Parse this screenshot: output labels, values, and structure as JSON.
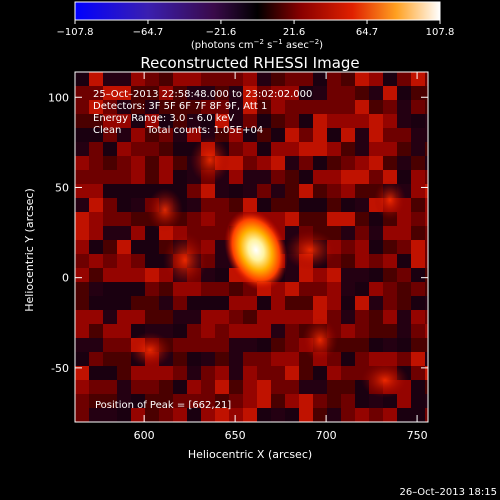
{
  "colorbar": {
    "tick_labels": [
      "−107.8",
      "−64.7",
      "−21.6",
      "21.6",
      "64.7",
      "107.8"
    ],
    "unit_main": "(photons cm",
    "unit_exp1": "−2",
    "unit_mid": " s",
    "unit_exp2": "−1",
    "unit_mid2": " asec",
    "unit_exp3": "−2",
    "unit_close": ")",
    "range": [
      -107.8,
      107.8
    ]
  },
  "annotations": {
    "time_range": "25–Oct–2013 22:58:48.000 to 23:02:02.000",
    "detectors": "Detectors: 3F 5F 6F 7F 8F 9F, Att 1",
    "energy_range": "Energy Range: 3.0 – 6.0 keV",
    "algorithm": "Clean",
    "total_counts": "Total counts: 1.05E+04",
    "peak": "Position of Peak = [662,21]"
  },
  "footer": {
    "timestamp": "26–Oct–2013 18:15"
  },
  "colors": {
    "frame": "#ffffff",
    "background": "#000000"
  },
  "chart_data": {
    "type": "heatmap",
    "title": "Reconstructed RHESSI Image",
    "xlabel": "Heliocentric X (arcsec)",
    "ylabel": "Heliocentric Y (arcsec)",
    "xlim": [
      562,
      756
    ],
    "ylim": [
      -80,
      114
    ],
    "xticks": [
      600,
      650,
      700,
      750
    ],
    "yticks": [
      -50,
      0,
      50,
      100
    ],
    "colormap": "blue-purple-red-yellow-white",
    "peak": {
      "x": 662,
      "y": 21,
      "value": 107.8
    }
  }
}
